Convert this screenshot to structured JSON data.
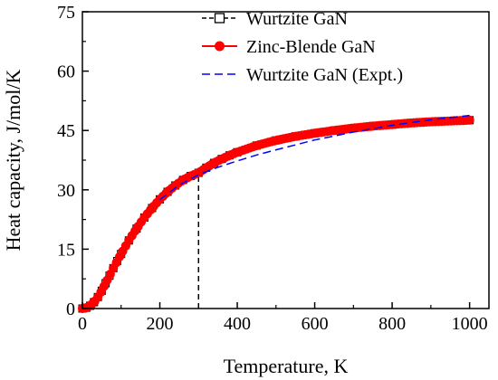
{
  "chart_data": {
    "type": "line",
    "title": "",
    "xlabel": "Temperature, K",
    "ylabel": "Heat capacity, J/mol/K",
    "xlim": [
      0,
      1050
    ],
    "ylim": [
      0,
      75
    ],
    "xticks": [
      0,
      200,
      400,
      600,
      800,
      1000
    ],
    "yticks": [
      0,
      15,
      30,
      45,
      60,
      75
    ],
    "xtick_labels": [
      "0",
      "200",
      "400",
      "600",
      "800",
      "1000"
    ],
    "ytick_labels": [
      "0",
      "15",
      "30",
      "45",
      "60",
      "75"
    ],
    "grid": false,
    "legend_position": "top-right",
    "annotation": {
      "type": "vertical-dashed-line",
      "x": 300,
      "y_from": 0,
      "y_to": 34.3
    },
    "series": [
      {
        "name": "Wurtzite GaN",
        "style": "black open squares with line",
        "color": "#000000",
        "x": [
          0,
          10,
          20,
          30,
          40,
          50,
          60,
          70,
          80,
          90,
          100,
          120,
          140,
          160,
          180,
          200,
          220,
          240,
          260,
          280,
          300,
          320,
          340,
          360,
          380,
          400,
          450,
          500,
          550,
          600,
          650,
          700,
          750,
          800,
          850,
          900,
          950,
          1000
        ],
        "y": [
          0,
          0.2,
          0.7,
          1.6,
          2.9,
          4.5,
          6.4,
          8.3,
          10.2,
          12.0,
          13.8,
          17.2,
          20.2,
          23.0,
          25.4,
          27.6,
          29.5,
          31.1,
          32.5,
          33.5,
          34.3,
          35.6,
          36.8,
          37.8,
          38.7,
          39.5,
          41.2,
          42.5,
          43.5,
          44.3,
          45.0,
          45.6,
          46.1,
          46.5,
          46.9,
          47.2,
          47.4,
          47.6
        ]
      },
      {
        "name": "Zinc-Blende GaN",
        "style": "red filled circles with line",
        "color": "#ff0000",
        "x": [
          0,
          10,
          20,
          30,
          40,
          50,
          60,
          70,
          80,
          90,
          100,
          120,
          140,
          160,
          180,
          200,
          220,
          240,
          260,
          280,
          300,
          320,
          340,
          360,
          380,
          400,
          450,
          500,
          550,
          600,
          650,
          700,
          750,
          800,
          850,
          900,
          950,
          1000
        ],
        "y": [
          0,
          0.2,
          0.7,
          1.6,
          2.9,
          4.5,
          6.4,
          8.3,
          10.2,
          12.0,
          13.8,
          17.2,
          20.2,
          23.0,
          25.4,
          27.6,
          29.5,
          31.1,
          32.5,
          33.5,
          34.3,
          35.6,
          36.8,
          37.8,
          38.7,
          39.5,
          41.2,
          42.5,
          43.5,
          44.3,
          45.0,
          45.6,
          46.1,
          46.5,
          46.9,
          47.2,
          47.4,
          47.6
        ]
      },
      {
        "name": "Wurtzite GaN (Expt.)",
        "style": "blue dashed line",
        "color": "#0000ff",
        "x": [
          200,
          250,
          300,
          350,
          400,
          450,
          500,
          600,
          700,
          800,
          900,
          1000
        ],
        "y": [
          27.5,
          31.2,
          33.8,
          35.7,
          37.3,
          38.8,
          40.1,
          42.6,
          44.6,
          46.3,
          47.7,
          48.8
        ]
      }
    ]
  }
}
